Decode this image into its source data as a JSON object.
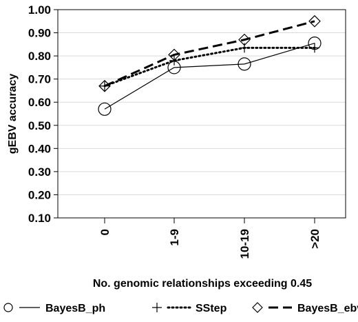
{
  "chart_data": {
    "type": "line",
    "xlabel": "No. genomic relationships exceeding 0.45",
    "ylabel": "gEBV accuracy",
    "categories": [
      "0",
      "1-9",
      "10-19",
      ">20"
    ],
    "y_ticks": [
      "0.10",
      "0.20",
      "0.30",
      "0.40",
      "0.50",
      "0.60",
      "0.70",
      "0.80",
      "0.90",
      "1.00"
    ],
    "ylim": [
      0.1,
      1.0
    ],
    "grid": "horizontal",
    "legend_position": "bottom",
    "series": [
      {
        "name": "BayesB_ph",
        "marker": "circle",
        "line": "solid",
        "values": [
          0.57,
          0.75,
          0.765,
          0.855
        ]
      },
      {
        "name": "SStep",
        "marker": "plus",
        "line": "dotted",
        "values": [
          0.67,
          0.78,
          0.835,
          0.835
        ]
      },
      {
        "name": "BayesB_ebv",
        "marker": "diamond",
        "line": "dashed",
        "values": [
          0.67,
          0.805,
          0.87,
          0.95
        ]
      }
    ]
  },
  "colors": {
    "series": "#000000",
    "grid": "#d9d9d9",
    "axis": "#000000"
  }
}
